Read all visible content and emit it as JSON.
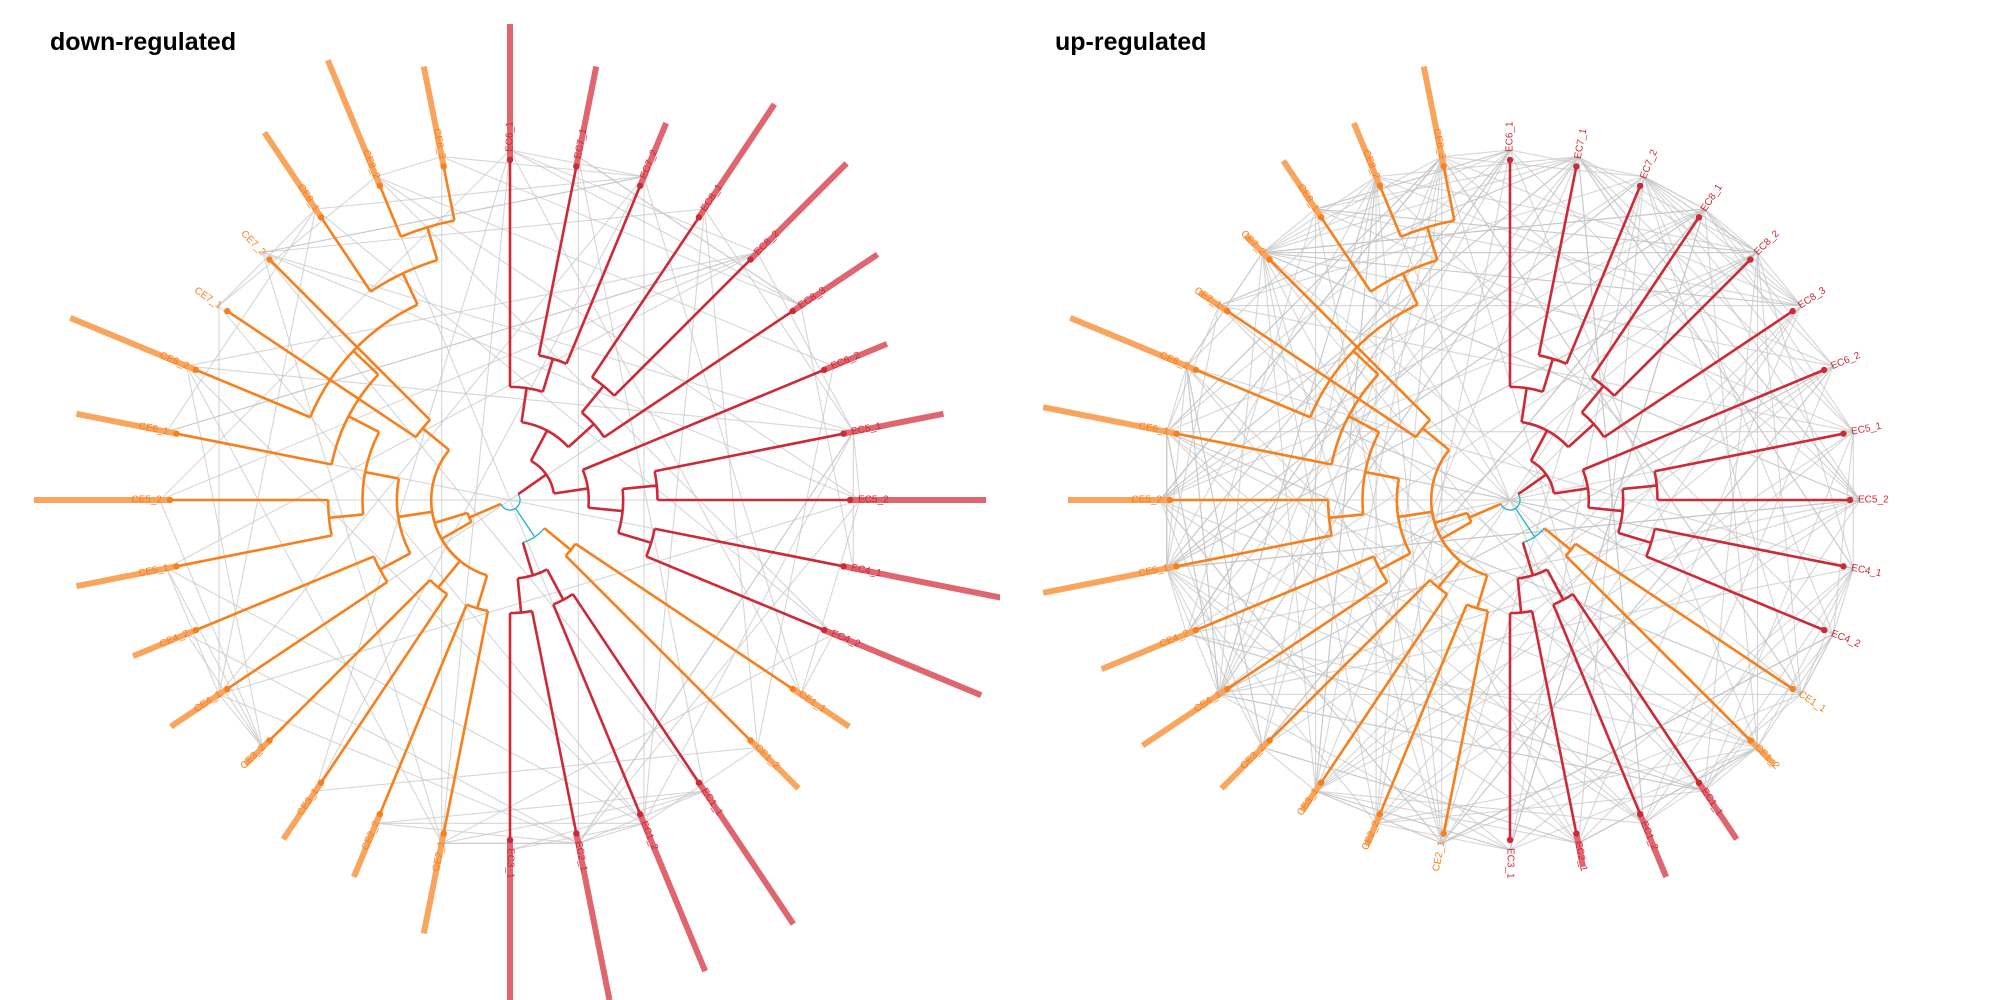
{
  "panels": {
    "down": {
      "title": "down-regulated"
    },
    "up": {
      "title": "up-regulated"
    }
  },
  "colors": {
    "red": "#cc2a36",
    "orange": "#f77f1c",
    "cyan": "#30b5c8",
    "bar_red": "#e0656e",
    "bar_orange": "#f9a55e",
    "link": "#c4c4c4"
  },
  "leaves": [
    {
      "label": "EC6_1",
      "group": "red"
    },
    {
      "label": "EC7_1",
      "group": "red"
    },
    {
      "label": "EC7_2",
      "group": "red"
    },
    {
      "label": "EC8_1",
      "group": "red"
    },
    {
      "label": "EC8_2",
      "group": "red"
    },
    {
      "label": "EC8_3",
      "group": "red"
    },
    {
      "label": "EC6_2",
      "group": "red"
    },
    {
      "label": "EC5_1",
      "group": "red"
    },
    {
      "label": "EC5_2",
      "group": "red"
    },
    {
      "label": "EC4_1",
      "group": "red"
    },
    {
      "label": "EC4_2",
      "group": "red"
    },
    {
      "label": "CE1_1",
      "group": "orange"
    },
    {
      "label": "CE1_2",
      "group": "orange"
    },
    {
      "label": "EC1_1",
      "group": "red"
    },
    {
      "label": "EC1_2",
      "group": "red"
    },
    {
      "label": "EC2_1",
      "group": "red"
    },
    {
      "label": "EC3_1",
      "group": "red"
    },
    {
      "label": "CE2_1",
      "group": "orange"
    },
    {
      "label": "CE2_2",
      "group": "orange"
    },
    {
      "label": "CE3_1",
      "group": "orange"
    },
    {
      "label": "CE3_2",
      "group": "orange"
    },
    {
      "label": "CE4_1",
      "group": "orange"
    },
    {
      "label": "CE4_2",
      "group": "orange"
    },
    {
      "label": "CE5_1",
      "group": "orange"
    },
    {
      "label": "CE5_2",
      "group": "orange"
    },
    {
      "label": "CE6_1",
      "group": "orange"
    },
    {
      "label": "CE6_2",
      "group": "orange"
    },
    {
      "label": "CE7_1",
      "group": "orange"
    },
    {
      "label": "CE7_2",
      "group": "orange"
    },
    {
      "label": "CE8_1",
      "group": "orange"
    },
    {
      "label": "CE8_2",
      "group": "orange"
    },
    {
      "label": "CE8_3",
      "group": "orange"
    }
  ],
  "left_bars": [
    4,
    3,
    2,
    4,
    4,
    3,
    2,
    3,
    4,
    5,
    5,
    2,
    2,
    5,
    5,
    5,
    5,
    3,
    2,
    2,
    1,
    2,
    2,
    3,
    4,
    3,
    4,
    0,
    0,
    3,
    4,
    3
  ],
  "right_bars": [
    0,
    0,
    0,
    0,
    0,
    0,
    0,
    0,
    0,
    0,
    0,
    0,
    1,
    2,
    2,
    1,
    0,
    0,
    1,
    1,
    2,
    3,
    3,
    4,
    3,
    4,
    4,
    1,
    1,
    2,
    2,
    3
  ]
}
